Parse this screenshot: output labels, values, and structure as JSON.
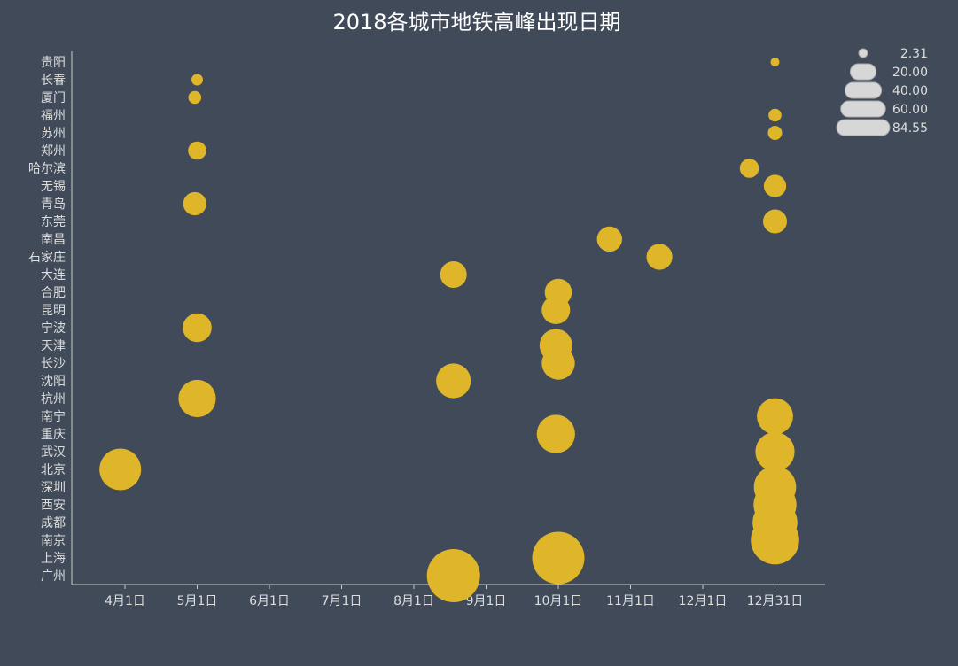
{
  "chart_data": {
    "type": "scatter",
    "title": "2018各城市地铁高峰出现日期",
    "xlabel": "",
    "ylabel": "",
    "x_tick_labels": [
      "4月1日",
      "5月1日",
      "6月1日",
      "7月1日",
      "8月1日",
      "9月1日",
      "10月1日",
      "11月1日",
      "12月1日",
      "12月31日"
    ],
    "categories": [
      "贵阳",
      "长春",
      "厦门",
      "福州",
      "苏州",
      "郑州",
      "哈尔滨",
      "无锡",
      "青岛",
      "东莞",
      "南昌",
      "石家庄",
      "大连",
      "合肥",
      "昆明",
      "宁波",
      "天津",
      "长沙",
      "沈阳",
      "杭州",
      "南宁",
      "重庆",
      "武汉",
      "北京",
      "深圳",
      "西安",
      "成都",
      "南京",
      "上海",
      "广州"
    ],
    "points": [
      {
        "city": "贵阳",
        "date": "12月31日",
        "value": 2.31
      },
      {
        "city": "长春",
        "date": "5月1日",
        "value": 4
      },
      {
        "city": "厦门",
        "date": "4月30日",
        "value": 5
      },
      {
        "city": "福州",
        "date": "12月31日",
        "value": 5
      },
      {
        "city": "苏州",
        "date": "12月31日",
        "value": 6
      },
      {
        "city": "郑州",
        "date": "5月1日",
        "value": 10
      },
      {
        "city": "哈尔滨",
        "date": "12月21日",
        "value": 11
      },
      {
        "city": "无锡",
        "date": "12月31日",
        "value": 15
      },
      {
        "city": "青岛",
        "date": "4月30日",
        "value": 16
      },
      {
        "city": "东莞",
        "date": "12月31日",
        "value": 17
      },
      {
        "city": "南昌",
        "date": "10月23日",
        "value": 19
      },
      {
        "city": "石家庄",
        "date": "11月13日",
        "value": 20
      },
      {
        "city": "大连",
        "date": "8月18日",
        "value": 21
      },
      {
        "city": "合肥",
        "date": "10月1日",
        "value": 22
      },
      {
        "city": "昆明",
        "date": "9月30日",
        "value": 24
      },
      {
        "city": "宁波",
        "date": "5月1日",
        "value": 25
      },
      {
        "city": "天津",
        "date": "9月30日",
        "value": 32
      },
      {
        "city": "长沙",
        "date": "10月1日",
        "value": 33
      },
      {
        "city": "沈阳",
        "date": "8月18日",
        "value": 36
      },
      {
        "city": "杭州",
        "date": "5月1日",
        "value": 42
      },
      {
        "city": "南宁",
        "date": "12月31日",
        "value": 39
      },
      {
        "city": "重庆",
        "date": "9月30日",
        "value": 44
      },
      {
        "city": "武汉",
        "date": "12月31日",
        "value": 46
      },
      {
        "city": "北京",
        "date": "3月30日",
        "value": 52
      },
      {
        "city": "深圳",
        "date": "12月31日",
        "value": 53
      },
      {
        "city": "西安",
        "date": "12月31日",
        "value": 55
      },
      {
        "city": "成都",
        "date": "12月31日",
        "value": 60
      },
      {
        "city": "南京",
        "date": "12月31日",
        "value": 70
      },
      {
        "city": "上海",
        "date": "10月1日",
        "value": 82
      },
      {
        "city": "广州",
        "date": "8月18日",
        "value": 84.55
      }
    ],
    "legend": {
      "placement": "top-right",
      "entries": [
        "2.31",
        "20.00",
        "40.00",
        "60.00",
        "84.55"
      ]
    },
    "marker_color": "#dfb62a",
    "legend_color": "#d7d7d7",
    "background_color": "#404a59",
    "grid": false
  }
}
